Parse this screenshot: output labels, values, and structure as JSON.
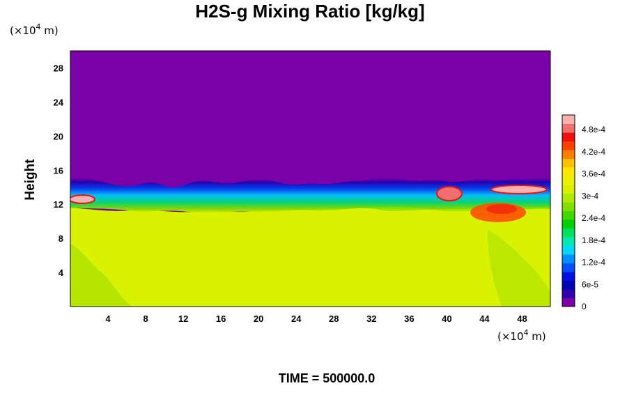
{
  "chart_data": {
    "type": "heatmap",
    "title": "H2S-g Mixing Ratio [kg/kg]",
    "ylabel": "Height",
    "x_unit_prefix": "(×10",
    "x_unit_exp": "4",
    "x_unit_suffix": " m)",
    "y_unit_prefix": "(×10",
    "y_unit_exp": "4",
    "y_unit_suffix": " m)",
    "xlim": [
      0,
      51
    ],
    "ylim": [
      0,
      30
    ],
    "x_ticks": [
      "4",
      "8",
      "12",
      "16",
      "20",
      "24",
      "28",
      "32",
      "36",
      "40",
      "44",
      "48"
    ],
    "x_tick_values": [
      4,
      8,
      12,
      16,
      20,
      24,
      28,
      32,
      36,
      40,
      44,
      48
    ],
    "y_ticks": [
      "4",
      "8",
      "12",
      "16",
      "20",
      "24",
      "28"
    ],
    "y_tick_values": [
      4,
      8,
      12,
      16,
      20,
      24,
      28
    ],
    "colorbar": {
      "min": 0,
      "max": 0.00052,
      "tick_labels": [
        "0",
        "6e-5",
        "1.2e-4",
        "1.8e-4",
        "2.4e-4",
        "3e-4",
        "3.6e-4",
        "4.2e-4",
        "4.8e-4"
      ],
      "tick_values": [
        0,
        6e-05,
        0.00012,
        0.00018,
        0.00024,
        0.0003,
        0.00036,
        0.00042,
        0.00048
      ],
      "colors": [
        "#7a00a8",
        "#3200a8",
        "#0000b4",
        "#0010e0",
        "#0050ff",
        "#0090ff",
        "#00d8ff",
        "#00e8b0",
        "#00e060",
        "#00d000",
        "#40d800",
        "#80e000",
        "#b0e800",
        "#d8f000",
        "#e8f000",
        "#f8e800",
        "#ffc000",
        "#ff8000",
        "#ff4000",
        "#f01010",
        "#f07070",
        "#f8b0b0"
      ]
    },
    "regions": {
      "upper_value": 0,
      "lower_value": 0.00035,
      "interface_height": 13
    },
    "footer": "TIME = 500000.0"
  }
}
